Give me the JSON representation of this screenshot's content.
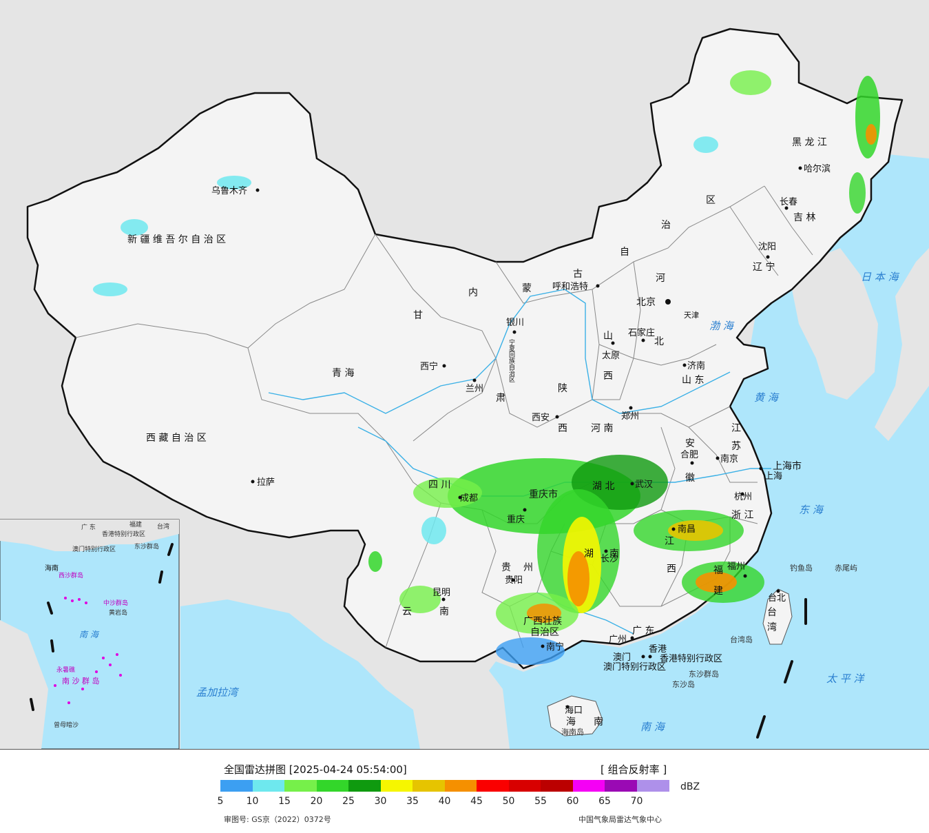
{
  "legend": {
    "title": "全国雷达拼图 [2025-04-24 05:54:00]",
    "product": "[ 组合反射率 ]",
    "unit": "dBZ",
    "ticks": [
      "5",
      "10",
      "15",
      "20",
      "25",
      "30",
      "35",
      "40",
      "45",
      "50",
      "55",
      "60",
      "65",
      "70"
    ],
    "colors": [
      "#3c9ff2",
      "#6ee8ee",
      "#76f04a",
      "#33d62a",
      "#0f9a0f",
      "#f6f600",
      "#e6c400",
      "#f59000",
      "#fa0000",
      "#d80000",
      "#bb0000",
      "#f500f5",
      "#9a0ab4",
      "#ae90ea"
    ],
    "approval": "审图号: GS京（2022）0372号",
    "source": "中国气象局雷达气象中心"
  },
  "map": {
    "provinces": [
      {
        "id": "xinjiang",
        "text": "新 疆 维 吾 尔 自 治 区"
      },
      {
        "id": "xizang",
        "text": "西 藏 自 治 区"
      },
      {
        "id": "qinghai",
        "text": "青      海"
      },
      {
        "id": "gansu_a",
        "text": "甘"
      },
      {
        "id": "gansu_b",
        "text": "肃"
      },
      {
        "id": "nmg_nei",
        "text": "内"
      },
      {
        "id": "nmg_meng",
        "text": "蒙"
      },
      {
        "id": "nmg_gu",
        "text": "古"
      },
      {
        "id": "nmg_zi",
        "text": "自"
      },
      {
        "id": "nmg_zhi",
        "text": "治"
      },
      {
        "id": "nmg_qu",
        "text": "区"
      },
      {
        "id": "hlj",
        "text": "黑  龙  江"
      },
      {
        "id": "jilin",
        "text": "吉  林"
      },
      {
        "id": "liaoning",
        "text": "辽  宁"
      },
      {
        "id": "hebei_a",
        "text": "河"
      },
      {
        "id": "hebei_b",
        "text": "北"
      },
      {
        "id": "shanxi_a",
        "text": "山"
      },
      {
        "id": "shanxi_b",
        "text": "西"
      },
      {
        "id": "shaanxi_a",
        "text": "陕"
      },
      {
        "id": "shaanxi_b",
        "text": "西"
      },
      {
        "id": "henan",
        "text": "河    南"
      },
      {
        "id": "shandong",
        "text": "山 东"
      },
      {
        "id": "jiangsu_a",
        "text": "江"
      },
      {
        "id": "jiangsu_b",
        "text": "苏"
      },
      {
        "id": "anhui_a",
        "text": "安"
      },
      {
        "id": "anhui_b",
        "text": "徽"
      },
      {
        "id": "hubei",
        "text": "湖    北"
      },
      {
        "id": "sichuan",
        "text": "四    川"
      },
      {
        "id": "chongqing",
        "text": "重庆市"
      },
      {
        "id": "hunan_a",
        "text": "湖"
      },
      {
        "id": "hunan_b",
        "text": "南"
      },
      {
        "id": "jiangxi_a",
        "text": "江"
      },
      {
        "id": "jiangxi_b",
        "text": "西"
      },
      {
        "id": "zhejiang",
        "text": "浙 江"
      },
      {
        "id": "fujian_a",
        "text": "福"
      },
      {
        "id": "fujian_b",
        "text": "建"
      },
      {
        "id": "guizhou_a",
        "text": "贵"
      },
      {
        "id": "guizhou_b",
        "text": "州"
      },
      {
        "id": "yunnan_a",
        "text": "云"
      },
      {
        "id": "yunnan_b",
        "text": "南"
      },
      {
        "id": "guangxi_a",
        "text": "广西壮族"
      },
      {
        "id": "guangxi_b",
        "text": "自治区"
      },
      {
        "id": "guangdong",
        "text": "广   东"
      },
      {
        "id": "hainan_a",
        "text": "海"
      },
      {
        "id": "hainan_b",
        "text": "南"
      },
      {
        "id": "taiwan_a",
        "text": "台"
      },
      {
        "id": "taiwan_b",
        "text": "湾"
      },
      {
        "id": "shanghai",
        "text": "上海市"
      },
      {
        "id": "tianjin",
        "text": "天津"
      },
      {
        "id": "ningxia",
        "text": "宁夏回族自治区"
      },
      {
        "id": "hk",
        "text": "香港特别行政区"
      },
      {
        "id": "macau",
        "text": "澳门特别行政区"
      }
    ],
    "cities": [
      {
        "id": "urumqi",
        "text": "乌鲁木齐"
      },
      {
        "id": "lhasa",
        "text": "拉萨"
      },
      {
        "id": "xining",
        "text": "西宁"
      },
      {
        "id": "lanzhou",
        "text": "兰州"
      },
      {
        "id": "yinchuan",
        "text": "银川"
      },
      {
        "id": "hohhot",
        "text": "呼和浩特"
      },
      {
        "id": "harbin",
        "text": "哈尔滨"
      },
      {
        "id": "changchun",
        "text": "长春"
      },
      {
        "id": "shenyang",
        "text": "沈阳"
      },
      {
        "id": "beijing",
        "text": "北京"
      },
      {
        "id": "shijiazhuang",
        "text": "石家庄"
      },
      {
        "id": "taiyuan",
        "text": "太原"
      },
      {
        "id": "jinan",
        "text": "济南"
      },
      {
        "id": "xian",
        "text": "西安"
      },
      {
        "id": "zhengzhou",
        "text": "郑州"
      },
      {
        "id": "hefei",
        "text": "合肥"
      },
      {
        "id": "nanjing",
        "text": "南京"
      },
      {
        "id": "shanghai_c",
        "text": "上海"
      },
      {
        "id": "wuhan",
        "text": "武汉"
      },
      {
        "id": "chengdu",
        "text": "成都"
      },
      {
        "id": "chongqing_c",
        "text": "重庆"
      },
      {
        "id": "hangzhou",
        "text": "杭州"
      },
      {
        "id": "nanchang",
        "text": "南昌"
      },
      {
        "id": "changsha",
        "text": "长沙"
      },
      {
        "id": "fuzhou",
        "text": "福州"
      },
      {
        "id": "guiyang",
        "text": "贵阳"
      },
      {
        "id": "kunming",
        "text": "昆明"
      },
      {
        "id": "nanning",
        "text": "南宁"
      },
      {
        "id": "guangzhou",
        "text": "广州"
      },
      {
        "id": "macau_c",
        "text": "澳门"
      },
      {
        "id": "hongkong_c",
        "text": "香港"
      },
      {
        "id": "haikou",
        "text": "海口"
      },
      {
        "id": "taipei",
        "text": "台北"
      }
    ],
    "seas": [
      {
        "id": "japan_sea",
        "text": "日 本 海"
      },
      {
        "id": "bohai",
        "text": "渤 海"
      },
      {
        "id": "yellow_sea",
        "text": "黄  海"
      },
      {
        "id": "east_sea",
        "text": "东  海"
      },
      {
        "id": "south_sea",
        "text": "南    海"
      },
      {
        "id": "pacific",
        "text": "太  平  洋"
      },
      {
        "id": "bengal",
        "text": "孟加拉湾"
      }
    ],
    "islands": [
      {
        "id": "diaoyu",
        "text": "钓鱼岛"
      },
      {
        "id": "chiwei",
        "text": "赤尾屿"
      },
      {
        "id": "taiwan_isl",
        "text": "台湾岛"
      },
      {
        "id": "hainan_isl",
        "text": "海南岛"
      },
      {
        "id": "dongsha_q",
        "text": "东沙群岛"
      },
      {
        "id": "dongsha",
        "text": "东沙岛"
      }
    ],
    "inset": [
      {
        "id": "in_guangdong",
        "text": "广  东"
      },
      {
        "id": "in_fujian",
        "text": "福建"
      },
      {
        "id": "in_taiwan",
        "text": "台湾"
      },
      {
        "id": "in_hk",
        "text": "香港特别行政区"
      },
      {
        "id": "in_macau",
        "text": "澳门特别行政区"
      },
      {
        "id": "in_dongsha",
        "text": "东沙群岛"
      },
      {
        "id": "in_hainan",
        "text": "海南"
      },
      {
        "id": "in_xisha",
        "text": "西沙群岛"
      },
      {
        "id": "in_zhongsha",
        "text": "中沙群岛"
      },
      {
        "id": "in_huangyan",
        "text": "黄岩岛"
      },
      {
        "id": "in_nanhai",
        "text": "南  海"
      },
      {
        "id": "in_nansha",
        "text": "南 沙 群 岛"
      },
      {
        "id": "in_yongshu",
        "text": "永暑礁"
      },
      {
        "id": "in_zengmu",
        "text": "曾母暗沙"
      }
    ]
  }
}
